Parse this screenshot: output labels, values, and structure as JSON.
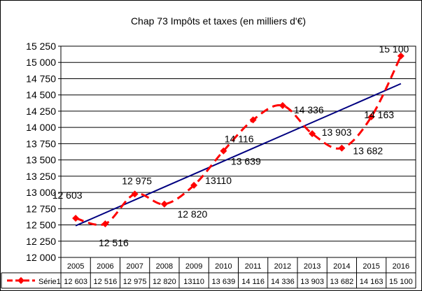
{
  "chart_data": {
    "type": "line",
    "title": "Chap 73 Impôts et taxes (en milliers d'€)",
    "categories": [
      "2005",
      "2006",
      "2007",
      "2008",
      "2009",
      "2010",
      "2011",
      "2012",
      "2013",
      "2014",
      "2015",
      "2016"
    ],
    "ylim": [
      12000,
      15250
    ],
    "ytick_labels": [
      "12 000",
      "12 250",
      "12 500",
      "12 750",
      "13 000",
      "13 250",
      "13 500",
      "13 750",
      "14 000",
      "14 250",
      "14 500",
      "14 750",
      "15 000",
      "15 250"
    ],
    "ytick_values": [
      12000,
      12250,
      12500,
      12750,
      13000,
      13250,
      13500,
      13750,
      14000,
      14250,
      14500,
      14750,
      15000,
      15250
    ],
    "grid": true,
    "legend": "data-table-below",
    "series": [
      {
        "name": "Série1",
        "values": [
          12603,
          12516,
          12975,
          12820,
          13110,
          13639,
          14116,
          14336,
          13903,
          13682,
          14163,
          15100
        ],
        "color": "#ff0000",
        "style": "dashed-smooth-with-diamond-markers"
      }
    ],
    "data_labels": [
      "12 603",
      "12 516",
      "12 975",
      "12 820",
      "13110",
      "13 639",
      "14 116",
      "14 336",
      "13 903",
      "13 682",
      "14 163",
      "15 100"
    ],
    "table_values": [
      "12 603",
      "12 516",
      "12 975",
      "12 820",
      "13110",
      "13 639",
      "14 116",
      "14 336",
      "13 903",
      "13 682",
      "14 163",
      "15 100"
    ],
    "trendline": {
      "type": "linear",
      "color": "#000080"
    }
  }
}
